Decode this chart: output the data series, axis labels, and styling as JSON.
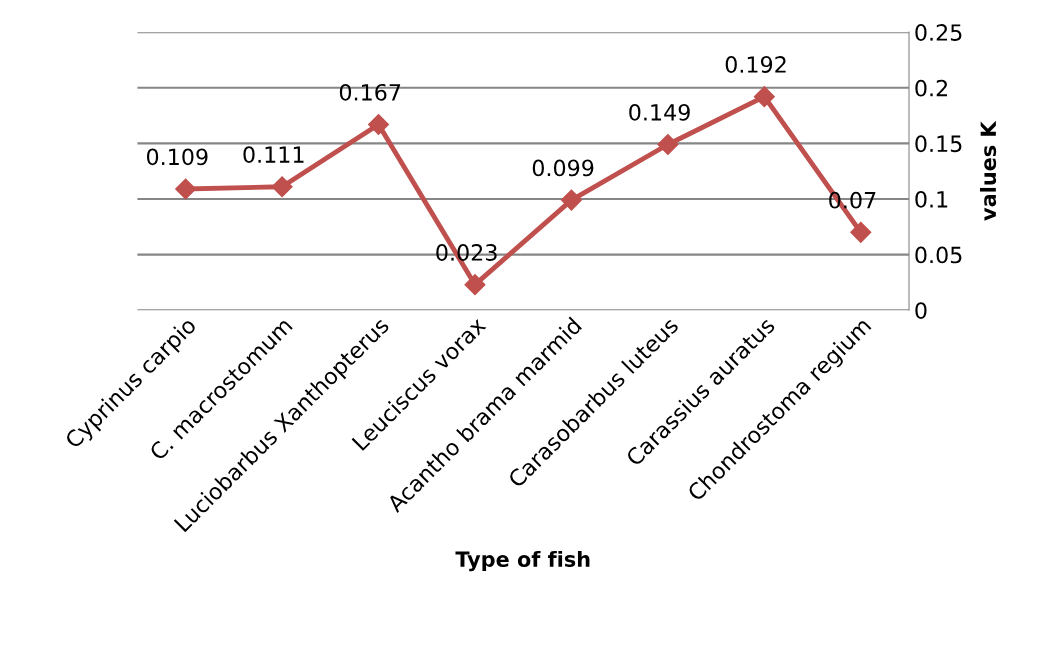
{
  "chart_data": {
    "type": "line",
    "xlabel": "Type of fish",
    "y2label": "values K",
    "categories": [
      "Cyprinus carpio",
      "C. macrostomum",
      "Luciobarbus Xanthopterus",
      "Leuciscus vorax",
      "Acantho brama marmid",
      "Carasobarbus luteus",
      "Carassius auratus",
      "Chondrostoma regium"
    ],
    "series": [
      {
        "color": "#c0504d",
        "axis": "y2",
        "values": [
          0.109,
          0.111,
          0.167,
          0.023,
          0.099,
          0.149,
          0.192,
          0.07
        ]
      }
    ],
    "y2lim": [
      0,
      0.25
    ],
    "y2ticks": [
      0,
      0.05,
      0.1,
      0.15,
      0.2,
      0.25
    ],
    "grid": "y",
    "marker": "diamond",
    "line_style": "solid",
    "data_labels": true,
    "legend": false
  }
}
